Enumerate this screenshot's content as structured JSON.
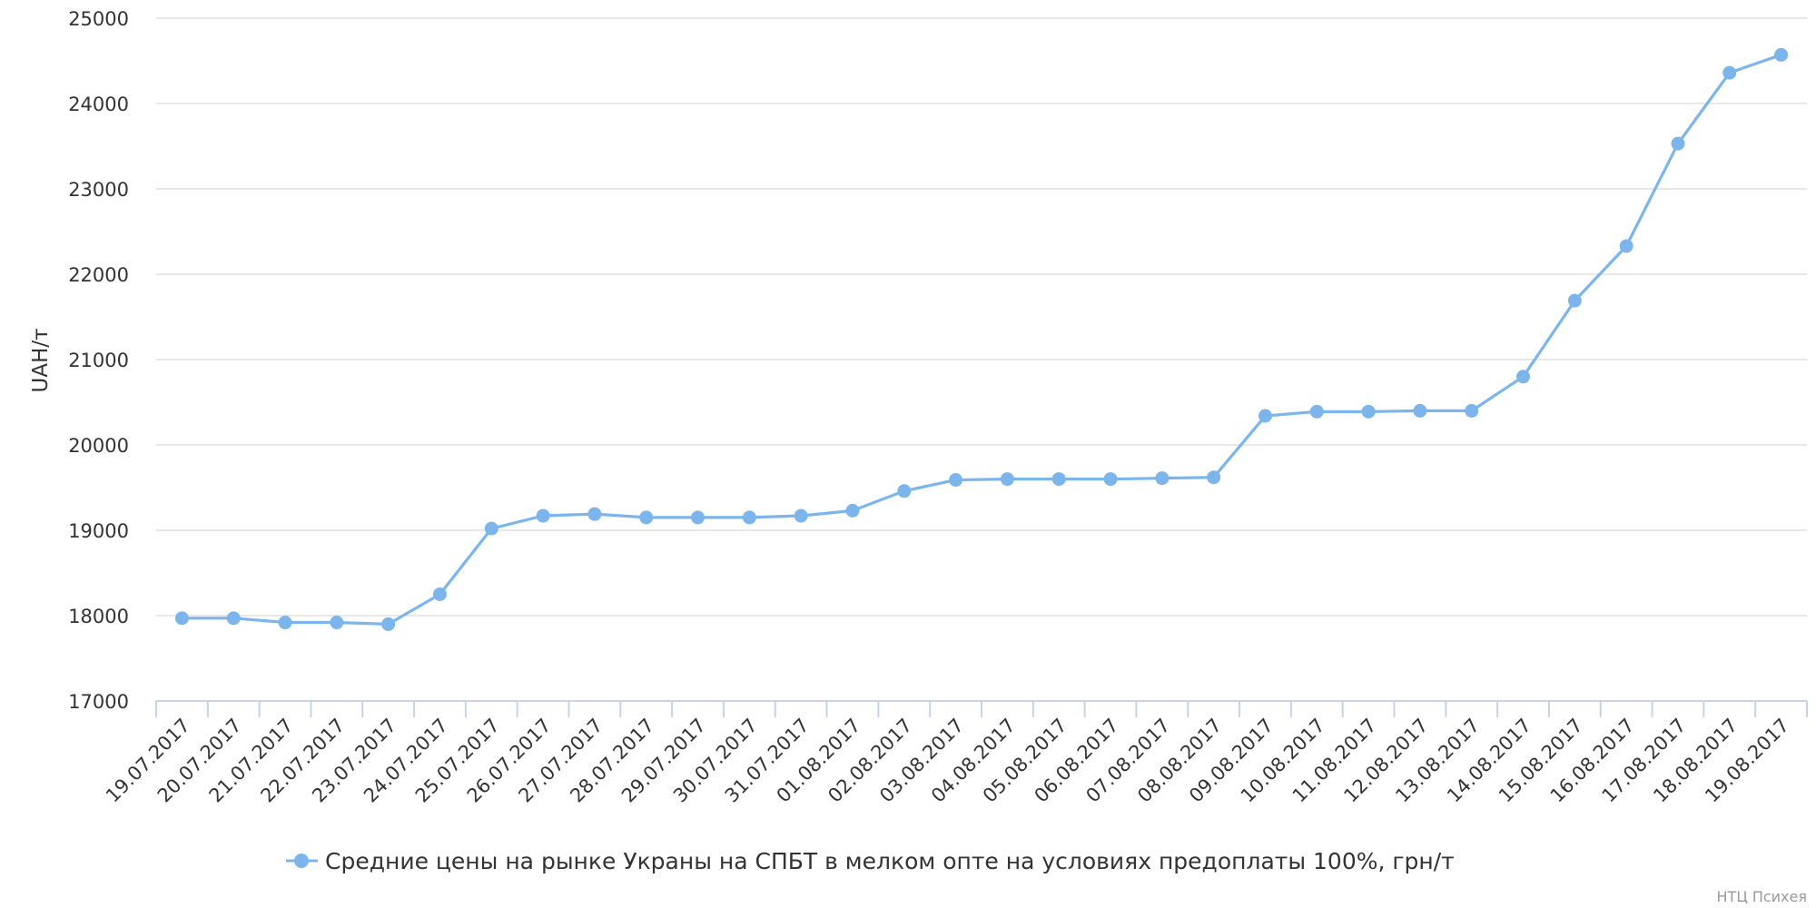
{
  "chart_data": {
    "type": "line",
    "title": "",
    "xlabel": "",
    "ylabel": "UAH/т",
    "ylim": [
      17000,
      25000
    ],
    "y_ticks": [
      17000,
      18000,
      19000,
      20000,
      21000,
      22000,
      23000,
      24000,
      25000
    ],
    "grid": true,
    "legend_position": "bottom-center",
    "line_color": "#7cb5ec",
    "categories": [
      "19.07.2017",
      "20.07.2017",
      "21.07.2017",
      "22.07.2017",
      "23.07.2017",
      "24.07.2017",
      "25.07.2017",
      "26.07.2017",
      "27.07.2017",
      "28.07.2017",
      "29.07.2017",
      "30.07.2017",
      "31.07.2017",
      "01.08.2017",
      "02.08.2017",
      "03.08.2017",
      "04.08.2017",
      "05.08.2017",
      "06.08.2017",
      "07.08.2017",
      "08.08.2017",
      "09.08.2017",
      "10.08.2017",
      "11.08.2017",
      "12.08.2017",
      "13.08.2017",
      "14.08.2017",
      "15.08.2017",
      "16.08.2017",
      "17.08.2017",
      "18.08.2017",
      "19.08.2017"
    ],
    "series": [
      {
        "name": "Средние цены на рынке Украны на СПБТ в мелком опте на условиях предоплаты 100%, грн/т",
        "values": [
          17970,
          17970,
          17920,
          17920,
          17900,
          18250,
          19020,
          19170,
          19190,
          19150,
          19150,
          19150,
          19170,
          19230,
          19460,
          19590,
          19600,
          19600,
          19600,
          19610,
          19620,
          20340,
          20390,
          20390,
          20400,
          20400,
          20800,
          21690,
          22330,
          23530,
          24360,
          24570
        ]
      }
    ]
  },
  "credit": "НТЦ Психея"
}
